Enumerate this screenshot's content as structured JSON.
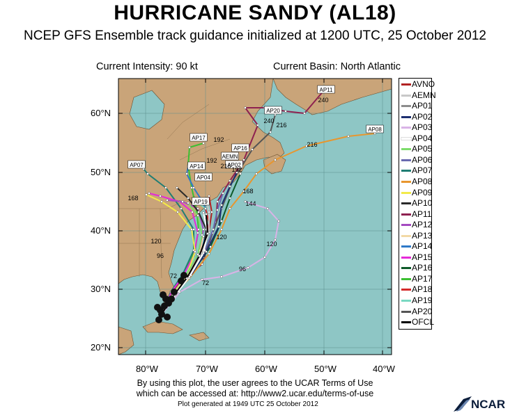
{
  "title": "HURRICANE SANDY (AL18)",
  "subtitle": "NCEP GFS Ensemble track guidance initialized at 1200 UTC, 25 October 2012",
  "intensity": "Current Intensity: 90 kt",
  "basin": "Current Basin: North Atlantic",
  "map": {
    "ocean_color": "#8ec6c5",
    "land_color": "#c9a479",
    "lat_labels": [
      "60°N",
      "50°N",
      "40°N",
      "30°N",
      "20°N"
    ],
    "lon_labels": [
      "80°W",
      "70°W",
      "60°W",
      "50°W",
      "40°W"
    ],
    "track_labels": [
      "AP11",
      "AP20",
      "AP17",
      "AP16",
      "AEMN",
      "AP07",
      "AP14",
      "AP08",
      "AP19",
      "AP02",
      "AP04"
    ],
    "hour_labels": [
      "240",
      "240",
      "216",
      "192",
      "216",
      "144",
      "120",
      "120",
      "96",
      "96",
      "72",
      "168",
      "168",
      "216",
      "192",
      "192",
      "120",
      "72"
    ]
  },
  "legend": [
    {
      "name": "AVNO",
      "color": "#b22222"
    },
    {
      "name": "AEMN",
      "color": "#c8c8c8"
    },
    {
      "name": "AP01",
      "color": "#8c8c8c"
    },
    {
      "name": "AP02",
      "color": "#1c2f70"
    },
    {
      "name": "AP03",
      "color": "#d9b3e6"
    },
    {
      "name": "AP04",
      "color": "#ffffff"
    },
    {
      "name": "AP05",
      "color": "#7ddc6b"
    },
    {
      "name": "AP06",
      "color": "#6a6ab0"
    },
    {
      "name": "AP07",
      "color": "#207e74"
    },
    {
      "name": "AP08",
      "color": "#e8962e"
    },
    {
      "name": "AP09",
      "color": "#f2ea4a"
    },
    {
      "name": "AP10",
      "color": "#2a2a2a"
    },
    {
      "name": "AP11",
      "color": "#8e2150"
    },
    {
      "name": "AP12",
      "color": "#a44ac0"
    },
    {
      "name": "AP13",
      "color": "#f2d9a6"
    },
    {
      "name": "AP14",
      "color": "#2f79c8"
    },
    {
      "name": "AP15",
      "color": "#e52ad8"
    },
    {
      "name": "AP16",
      "color": "#0e5a2a"
    },
    {
      "name": "AP17",
      "color": "#3cbf32"
    },
    {
      "name": "AP18",
      "color": "#d42a2a"
    },
    {
      "name": "AP19",
      "color": "#7ad9c2"
    },
    {
      "name": "AP20",
      "color": "#555555"
    },
    {
      "name": "OFCL",
      "color": "#000000"
    }
  ],
  "disclaimer_line1": "By using this plot, the user agrees to the UCAR Terms of Use",
  "disclaimer_line2": "which can be accessed at: http://www2.ucar.edu/terms-of-use",
  "generated": "Plot generated at 1949 UTC   25 October 2012",
  "logo": "NCAR"
}
